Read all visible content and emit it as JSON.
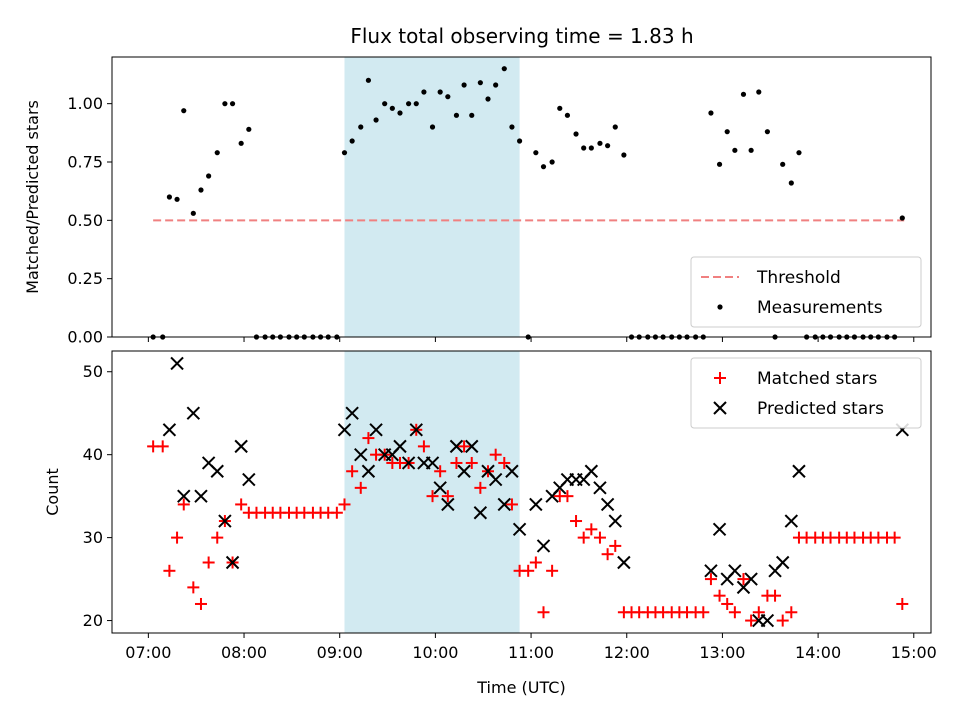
{
  "title": "Flux total observing time = 1.83 h",
  "colors": {
    "threshold": "#f08080",
    "matched": "#ff0000",
    "predicted": "#000000",
    "highlight": "#add8e6"
  },
  "chart_data": [
    {
      "type": "scatter",
      "panel": "top",
      "xlabel": "",
      "ylabel": "Matched/Predicted stars",
      "xlim": [
        6.62,
        15.18
      ],
      "ylim": [
        0,
        1.2
      ],
      "yticks": [
        0.0,
        0.25,
        0.5,
        0.75,
        1.0
      ],
      "ytick_labels": [
        "0.00",
        "0.25",
        "0.50",
        "0.75",
        "1.00"
      ],
      "highlight_span": [
        9.05,
        10.88
      ],
      "legend_position": "lower-right",
      "threshold": {
        "name": "Threshold",
        "value": 0.5,
        "x_range": [
          7.05,
          14.9
        ]
      },
      "series": [
        {
          "name": "Measurements",
          "marker": "dot",
          "x": [
            7.05,
            7.15,
            7.22,
            7.3,
            7.37,
            7.47,
            7.55,
            7.63,
            7.72,
            7.8,
            7.88,
            7.97,
            8.05,
            8.13,
            8.22,
            8.3,
            8.38,
            8.47,
            8.55,
            8.63,
            8.72,
            8.8,
            8.88,
            8.97,
            9.05,
            9.13,
            9.22,
            9.3,
            9.38,
            9.47,
            9.55,
            9.63,
            9.72,
            9.8,
            9.88,
            9.97,
            10.05,
            10.13,
            10.22,
            10.3,
            10.38,
            10.47,
            10.55,
            10.63,
            10.72,
            10.8,
            10.88,
            10.97,
            11.05,
            11.13,
            11.22,
            11.3,
            11.38,
            11.47,
            11.55,
            11.63,
            11.72,
            11.8,
            11.88,
            11.97,
            12.05,
            12.13,
            12.22,
            12.3,
            12.38,
            12.47,
            12.55,
            12.63,
            12.72,
            12.8,
            12.88,
            12.97,
            13.05,
            13.13,
            13.22,
            13.3,
            13.38,
            13.47,
            13.55,
            13.63,
            13.72,
            13.8,
            13.88,
            13.97,
            14.05,
            14.13,
            14.22,
            14.3,
            14.38,
            14.47,
            14.55,
            14.63,
            14.72,
            14.8,
            14.88
          ],
          "y": [
            0.0,
            0.0,
            0.6,
            0.59,
            0.97,
            0.53,
            0.63,
            0.69,
            0.79,
            1.0,
            1.0,
            0.83,
            0.89,
            0.0,
            0.0,
            0.0,
            0.0,
            0.0,
            0.0,
            0.0,
            0.0,
            0.0,
            0.0,
            0.0,
            0.79,
            0.84,
            0.9,
            1.1,
            0.93,
            1.0,
            0.98,
            0.96,
            1.0,
            1.0,
            1.05,
            0.9,
            1.05,
            1.03,
            0.95,
            1.08,
            0.95,
            1.09,
            1.02,
            1.08,
            1.15,
            0.9,
            0.84,
            0.0,
            0.79,
            0.73,
            0.75,
            0.98,
            0.95,
            0.87,
            0.81,
            0.81,
            0.83,
            0.82,
            0.9,
            0.78,
            0.0,
            0.0,
            0.0,
            0.0,
            0.0,
            0.0,
            0.0,
            0.0,
            0.0,
            0.0,
            0.96,
            0.74,
            0.88,
            0.8,
            1.04,
            0.8,
            1.05,
            0.88,
            0.0,
            0.74,
            0.66,
            0.79,
            0.0,
            0.0,
            0.0,
            0.0,
            0.0,
            0.0,
            0.0,
            0.0,
            0.0,
            0.0,
            0.0,
            0.0,
            0.51
          ]
        }
      ]
    },
    {
      "type": "scatter",
      "panel": "bottom",
      "xlabel": "Time (UTC)",
      "ylabel": "Count",
      "xlim": [
        6.62,
        15.18
      ],
      "ylim": [
        18.5,
        52.5
      ],
      "yticks": [
        20,
        30,
        40,
        50
      ],
      "ytick_labels": [
        "20",
        "30",
        "40",
        "50"
      ],
      "xticks": [
        7,
        8,
        9,
        10,
        11,
        12,
        13,
        14,
        15
      ],
      "xtick_labels": [
        "07:00",
        "08:00",
        "09:00",
        "10:00",
        "11:00",
        "12:00",
        "13:00",
        "14:00",
        "15:00"
      ],
      "highlight_span": [
        9.05,
        10.88
      ],
      "legend_position": "upper-right",
      "series": [
        {
          "name": "Matched stars",
          "marker": "plus",
          "x": [
            7.05,
            7.15,
            7.22,
            7.3,
            7.37,
            7.47,
            7.55,
            7.63,
            7.72,
            7.8,
            7.88,
            7.97,
            8.05,
            8.13,
            8.22,
            8.3,
            8.38,
            8.47,
            8.55,
            8.63,
            8.72,
            8.8,
            8.88,
            8.97,
            9.05,
            9.13,
            9.22,
            9.3,
            9.38,
            9.47,
            9.55,
            9.63,
            9.72,
            9.8,
            9.88,
            9.97,
            10.05,
            10.13,
            10.22,
            10.3,
            10.38,
            10.47,
            10.55,
            10.63,
            10.72,
            10.8,
            10.88,
            10.97,
            11.05,
            11.13,
            11.22,
            11.3,
            11.38,
            11.47,
            11.55,
            11.63,
            11.72,
            11.8,
            11.88,
            11.97,
            12.05,
            12.13,
            12.22,
            12.3,
            12.38,
            12.47,
            12.55,
            12.63,
            12.72,
            12.8,
            12.88,
            12.97,
            13.05,
            13.13,
            13.22,
            13.3,
            13.38,
            13.47,
            13.55,
            13.63,
            13.72,
            13.8,
            13.88,
            13.97,
            14.05,
            14.13,
            14.22,
            14.3,
            14.38,
            14.47,
            14.55,
            14.63,
            14.72,
            14.8,
            14.88
          ],
          "y": [
            41,
            41,
            26,
            30,
            34,
            24,
            22,
            27,
            30,
            32,
            27,
            34,
            33,
            33,
            33,
            33,
            33,
            33,
            33,
            33,
            33,
            33,
            33,
            33,
            34,
            38,
            36,
            42,
            40,
            40,
            39,
            39,
            39,
            43,
            41,
            35,
            38,
            35,
            39,
            41,
            39,
            36,
            38,
            40,
            39,
            34,
            26,
            26,
            27,
            21,
            26,
            35,
            35,
            32,
            30,
            31,
            30,
            28,
            29,
            21,
            21,
            21,
            21,
            21,
            21,
            21,
            21,
            21,
            21,
            21,
            25,
            23,
            22,
            21,
            25,
            20,
            21,
            23,
            23,
            20,
            21,
            30,
            30,
            30,
            30,
            30,
            30,
            30,
            30,
            30,
            30,
            30,
            30,
            30,
            22
          ]
        },
        {
          "name": "Predicted stars",
          "marker": "x",
          "x": [
            7.22,
            7.3,
            7.37,
            7.47,
            7.55,
            7.63,
            7.72,
            7.8,
            7.88,
            7.97,
            8.05,
            9.05,
            9.13,
            9.22,
            9.3,
            9.38,
            9.47,
            9.55,
            9.63,
            9.72,
            9.8,
            9.88,
            9.97,
            10.05,
            10.13,
            10.22,
            10.3,
            10.38,
            10.47,
            10.55,
            10.63,
            10.72,
            10.8,
            10.88,
            11.05,
            11.13,
            11.22,
            11.3,
            11.38,
            11.47,
            11.55,
            11.63,
            11.72,
            11.8,
            11.88,
            11.97,
            12.88,
            12.97,
            13.05,
            13.13,
            13.22,
            13.3,
            13.38,
            13.47,
            13.55,
            13.63,
            13.72,
            13.8,
            14.88
          ],
          "y": [
            43,
            51,
            35,
            45,
            35,
            39,
            38,
            32,
            27,
            41,
            37,
            43,
            45,
            40,
            38,
            43,
            40,
            40,
            41,
            39,
            43,
            39,
            39,
            36,
            34,
            41,
            38,
            41,
            33,
            38,
            37,
            34,
            38,
            31,
            34,
            29,
            35,
            36,
            37,
            37,
            37,
            38,
            36,
            34,
            32,
            27,
            26,
            31,
            25,
            26,
            24,
            25,
            20,
            20,
            26,
            27,
            32,
            38,
            43
          ]
        }
      ]
    }
  ]
}
